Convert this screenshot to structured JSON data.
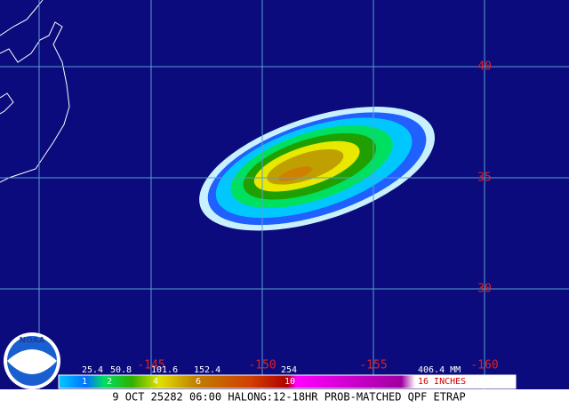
{
  "map": {
    "lat_labels": [
      "40",
      "35",
      "30"
    ],
    "lon_labels": [
      "-145",
      "-150",
      "-155",
      "-160"
    ]
  },
  "legend": {
    "mm_labels": [
      "25.4",
      "50.8",
      "101.6",
      "152.4",
      "254",
      "406.4 MM"
    ],
    "inch_labels": [
      "1",
      "2",
      "4",
      "6",
      "10",
      "16 INCHES"
    ]
  },
  "logo": "NOAA",
  "caption": "9 OCT 25282 06:00 HALONG:12-18HR PROB-MATCHED QPF ETRAP"
}
